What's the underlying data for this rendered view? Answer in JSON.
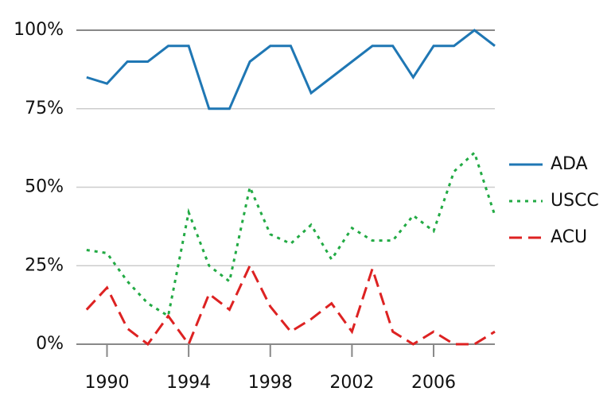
{
  "chart_data": {
    "type": "line",
    "x": [
      1989,
      1990,
      1991,
      1992,
      1993,
      1994,
      1995,
      1996,
      1997,
      1998,
      1999,
      2000,
      2001,
      2002,
      2003,
      2004,
      2005,
      2006,
      2007,
      2008,
      2009
    ],
    "series": [
      {
        "name": "ADA",
        "color": "#1f77b4",
        "dash": "solid",
        "values": [
          85,
          83,
          90,
          90,
          95,
          95,
          75,
          75,
          90,
          95,
          95,
          80,
          85,
          90,
          95,
          95,
          85,
          95,
          95,
          100,
          95
        ]
      },
      {
        "name": "USCC",
        "color": "#22aa44",
        "dash": "dotted",
        "values": [
          30,
          29,
          20,
          13,
          9,
          42,
          25,
          20,
          50,
          35,
          32,
          38,
          27,
          37,
          33,
          33,
          41,
          36,
          55,
          61,
          41
        ]
      },
      {
        "name": "ACU",
        "color": "#dd2222",
        "dash": "dashed",
        "values": [
          11,
          18,
          5,
          0,
          9,
          0,
          16,
          11,
          25,
          12,
          4,
          8,
          13,
          4,
          24,
          4,
          0,
          4,
          0,
          0,
          4
        ]
      }
    ],
    "xlim": [
      1988.5,
      2009
    ],
    "xticks": [
      1990,
      1994,
      1998,
      2002,
      2006
    ],
    "ylim": [
      0,
      100
    ],
    "yticks": [
      {
        "value": 0,
        "label": "0%"
      },
      {
        "value": 25,
        "label": "25%"
      },
      {
        "value": 50,
        "label": "50%"
      },
      {
        "value": 75,
        "label": "75%"
      },
      {
        "value": 100,
        "label": "100%"
      }
    ],
    "grid": true,
    "legend": "right"
  }
}
